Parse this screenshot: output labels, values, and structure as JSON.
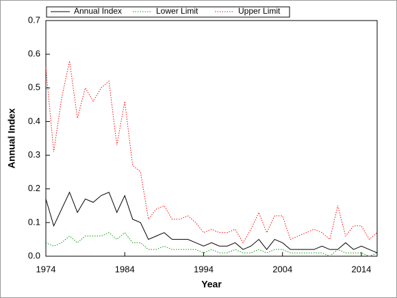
{
  "chart_data": {
    "type": "line",
    "xlabel": "Year",
    "ylabel": "Annual Index",
    "x": [
      1974,
      1975,
      1976,
      1977,
      1978,
      1979,
      1980,
      1981,
      1982,
      1983,
      1984,
      1985,
      1986,
      1987,
      1988,
      1989,
      1990,
      1991,
      1992,
      1993,
      1994,
      1995,
      1996,
      1997,
      1998,
      1999,
      2000,
      2001,
      2002,
      2003,
      2004,
      2005,
      2006,
      2007,
      2008,
      2009,
      2010,
      2011,
      2012,
      2013,
      2014,
      2015,
      2016
    ],
    "series": [
      {
        "name": "Annual Index",
        "color": "#000000",
        "dash": "solid",
        "values": [
          0.17,
          0.09,
          0.14,
          0.19,
          0.13,
          0.17,
          0.16,
          0.18,
          0.19,
          0.13,
          0.18,
          0.11,
          0.1,
          0.05,
          0.06,
          0.07,
          0.05,
          0.05,
          0.05,
          0.04,
          0.03,
          0.04,
          0.03,
          0.03,
          0.04,
          0.02,
          0.03,
          0.05,
          0.02,
          0.05,
          0.04,
          0.02,
          0.02,
          0.02,
          0.02,
          0.03,
          0.02,
          0.02,
          0.04,
          0.02,
          0.03,
          0.02,
          0.01
        ]
      },
      {
        "name": "Lower Limit",
        "color": "#009900",
        "dash": "dotted",
        "values": [
          0.04,
          0.03,
          0.04,
          0.06,
          0.04,
          0.06,
          0.06,
          0.06,
          0.07,
          0.05,
          0.07,
          0.04,
          0.04,
          0.02,
          0.02,
          0.03,
          0.02,
          0.02,
          0.02,
          0.02,
          0.01,
          0.02,
          0.01,
          0.01,
          0.02,
          0.01,
          0.01,
          0.02,
          0.01,
          0.02,
          0.02,
          0.01,
          0.01,
          0.01,
          0.01,
          0.01,
          0.0,
          0.02,
          0.01,
          0.01,
          0.01,
          0.0,
          0.01
        ]
      },
      {
        "name": "Upper Limit",
        "color": "#ff0000",
        "dash": "dotted",
        "values": [
          0.56,
          0.31,
          0.47,
          0.58,
          0.41,
          0.5,
          0.46,
          0.5,
          0.52,
          0.33,
          0.46,
          0.27,
          0.25,
          0.11,
          0.14,
          0.15,
          0.11,
          0.11,
          0.12,
          0.1,
          0.07,
          0.08,
          0.07,
          0.07,
          0.08,
          0.04,
          0.08,
          0.13,
          0.07,
          0.12,
          0.12,
          0.05,
          0.06,
          0.07,
          0.08,
          0.07,
          0.05,
          0.15,
          0.06,
          0.09,
          0.09,
          0.05,
          0.07
        ]
      }
    ],
    "xlim": [
      1974,
      2016
    ],
    "xticks": [
      1974,
      1984,
      1994,
      2004,
      2014
    ],
    "ylim": [
      0,
      0.7
    ],
    "yticks": [
      {
        "value": 0,
        "label": "0.0"
      },
      0.1,
      0.2,
      0.3,
      0.4,
      0.5,
      0.6,
      0.7
    ],
    "legend": "top"
  }
}
